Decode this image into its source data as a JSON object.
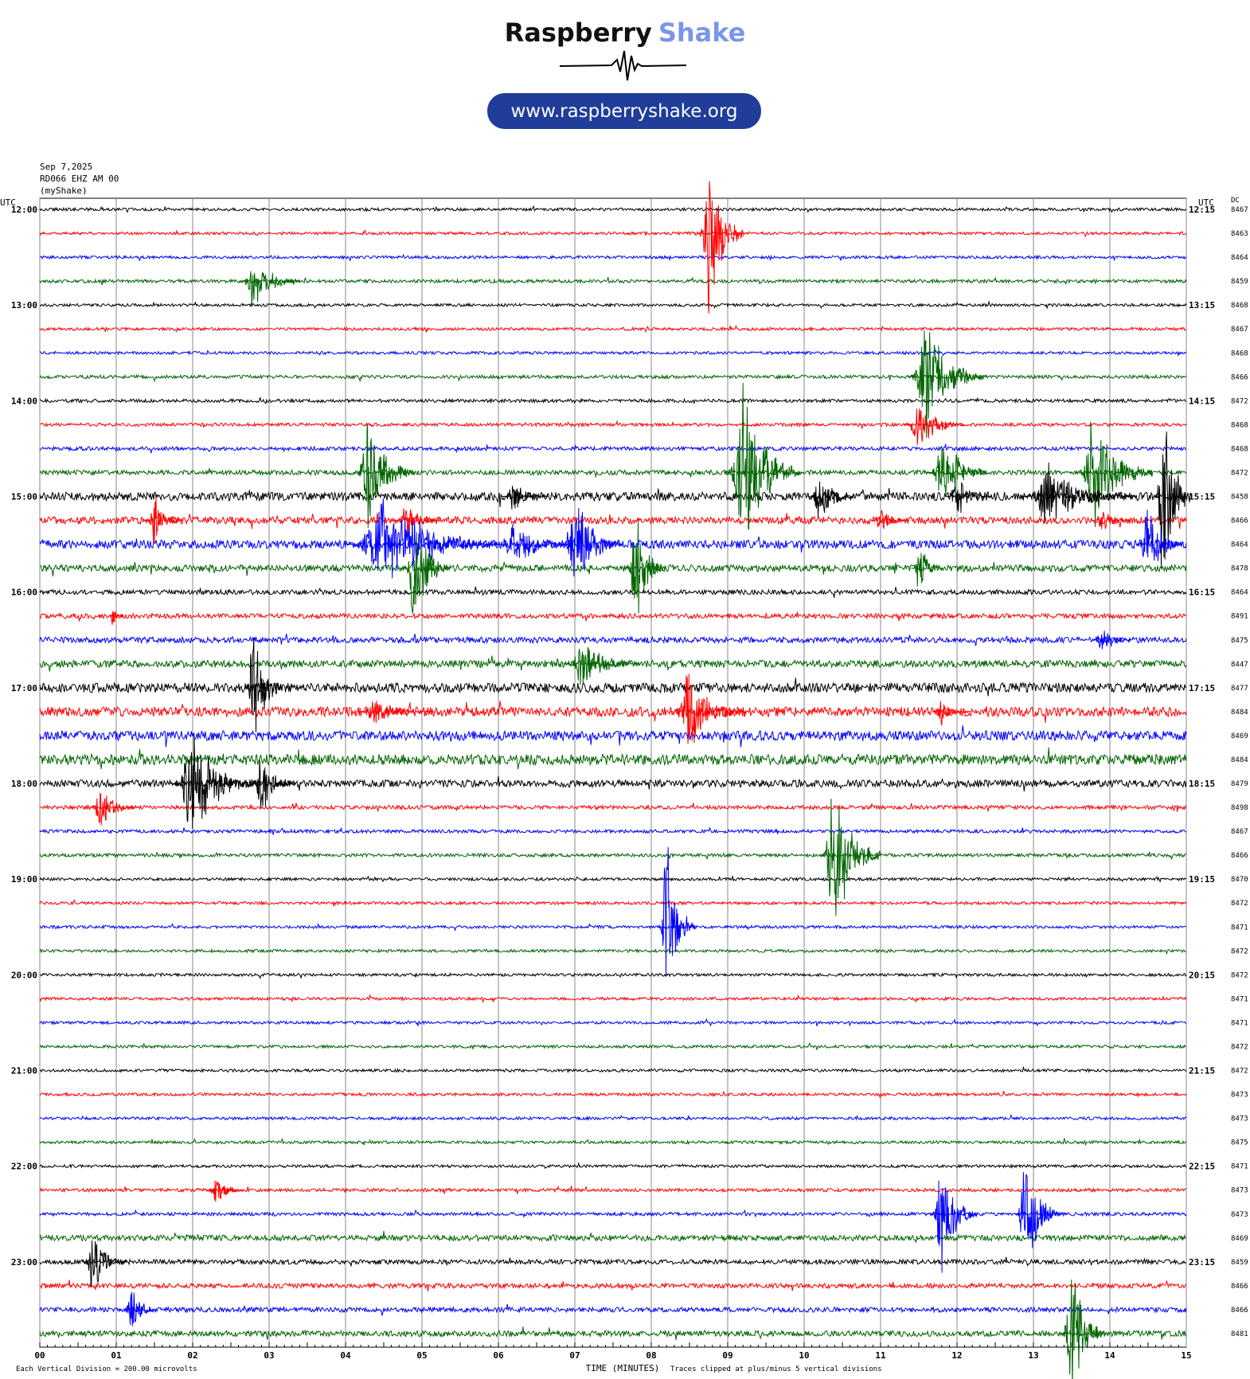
{
  "header": {
    "brand": "Raspberry",
    "brand_accent": "Shake",
    "url": "www.raspberryshake.org"
  },
  "chart_data": {
    "type": "helicorder",
    "date": "Sep 7,2025",
    "station": "RD066 EHZ AM 00",
    "source": "(myShake)",
    "left_axis_label": "UTC",
    "right_axis_label": "UTC",
    "dc_label": "DC",
    "left_labels": [
      "12:00",
      null,
      null,
      null,
      "13:00",
      null,
      null,
      null,
      "14:00",
      null,
      null,
      null,
      "15:00",
      null,
      null,
      null,
      "16:00",
      null,
      null,
      null,
      "17:00",
      null,
      null,
      null,
      "18:00",
      null,
      null,
      null,
      "19:00",
      null,
      null,
      null,
      "20:00",
      null,
      null,
      null,
      "21:00",
      null,
      null,
      null,
      "22:00",
      null,
      null,
      null,
      "23:00",
      null,
      null,
      null
    ],
    "right_labels": [
      "12:15",
      null,
      null,
      null,
      "13:15",
      null,
      null,
      null,
      "14:15",
      null,
      null,
      null,
      "15:15",
      null,
      null,
      null,
      "16:15",
      null,
      null,
      null,
      "17:15",
      null,
      null,
      null,
      "18:15",
      null,
      null,
      null,
      "19:15",
      null,
      null,
      null,
      "20:15",
      null,
      null,
      null,
      "21:15",
      null,
      null,
      null,
      "22:15",
      null,
      null,
      null,
      "23:15",
      null,
      null,
      null
    ],
    "dc_values": [
      8467,
      8463,
      8464,
      8459,
      8468,
      8467,
      8468,
      8466,
      8472,
      8468,
      8468,
      8472,
      8458,
      8466,
      8464,
      8478,
      8464,
      8491,
      8475,
      8447,
      8477,
      8484,
      8469,
      8484,
      8479,
      8498,
      8467,
      8466,
      8470,
      8472,
      8471,
      8472,
      8472,
      8471,
      8471,
      8472,
      8472,
      8473,
      8473,
      8475,
      8471,
      8473,
      8473,
      8469,
      8459,
      8466,
      8466,
      8481
    ],
    "colors": [
      "#000000",
      "#ff0000",
      "#0000ff",
      "#006400"
    ],
    "noise": [
      0.06,
      0.06,
      0.06,
      0.07,
      0.06,
      0.06,
      0.06,
      0.07,
      0.07,
      0.07,
      0.08,
      0.1,
      0.18,
      0.15,
      0.18,
      0.14,
      0.1,
      0.1,
      0.12,
      0.15,
      0.2,
      0.2,
      0.2,
      0.22,
      0.15,
      0.08,
      0.07,
      0.07,
      0.06,
      0.06,
      0.06,
      0.06,
      0.06,
      0.06,
      0.06,
      0.06,
      0.06,
      0.06,
      0.06,
      0.06,
      0.06,
      0.07,
      0.07,
      0.12,
      0.1,
      0.1,
      0.1,
      0.12
    ],
    "events": [
      {
        "row": 1,
        "minute": 8.75,
        "amplitude": 4.5,
        "duration": 0.6
      },
      {
        "row": 3,
        "minute": 2.8,
        "amplitude": 1.3,
        "duration": 0.8
      },
      {
        "row": 7,
        "minute": 11.6,
        "amplitude": 3,
        "duration": 1
      },
      {
        "row": 9,
        "minute": 11.5,
        "amplitude": 1.2,
        "duration": 0.8
      },
      {
        "row": 11,
        "minute": 4.3,
        "amplitude": 3,
        "duration": 0.8
      },
      {
        "row": 11,
        "minute": 9.2,
        "amplitude": 4,
        "duration": 1
      },
      {
        "row": 11,
        "minute": 11.8,
        "amplitude": 2,
        "duration": 0.8
      },
      {
        "row": 11,
        "minute": 13.8,
        "amplitude": 3,
        "duration": 1
      },
      {
        "row": 12,
        "minute": 6.2,
        "amplitude": 0.8,
        "duration": 0.6
      },
      {
        "row": 12,
        "minute": 10.2,
        "amplitude": 1.5,
        "duration": 0.6
      },
      {
        "row": 12,
        "minute": 12,
        "amplitude": 1,
        "duration": 0.6
      },
      {
        "row": 12,
        "minute": 13.2,
        "amplitude": 1.5,
        "duration": 1.5
      },
      {
        "row": 12,
        "minute": 14.7,
        "amplitude": 5,
        "duration": 0.5
      },
      {
        "row": 13,
        "minute": 1.5,
        "amplitude": 1.3,
        "duration": 0.5
      },
      {
        "row": 13,
        "minute": 4.8,
        "amplitude": 1,
        "duration": 0.6
      },
      {
        "row": 13,
        "minute": 11,
        "amplitude": 0.7,
        "duration": 0.5
      },
      {
        "row": 13,
        "minute": 13.9,
        "amplitude": 0.6,
        "duration": 0.5
      },
      {
        "row": 14,
        "minute": 4.5,
        "amplitude": 2.5,
        "duration": 2
      },
      {
        "row": 14,
        "minute": 6.2,
        "amplitude": 1.2,
        "duration": 1
      },
      {
        "row": 14,
        "minute": 7,
        "amplitude": 2.5,
        "duration": 0.8
      },
      {
        "row": 14,
        "minute": 14.5,
        "amplitude": 2,
        "duration": 0.6
      },
      {
        "row": 15,
        "minute": 4.9,
        "amplitude": 3,
        "duration": 0.6
      },
      {
        "row": 15,
        "minute": 7.8,
        "amplitude": 3,
        "duration": 0.5
      },
      {
        "row": 15,
        "minute": 11.5,
        "amplitude": 1.5,
        "duration": 0.4
      },
      {
        "row": 17,
        "minute": 0.95,
        "amplitude": 0.6,
        "duration": 0.2
      },
      {
        "row": 18,
        "minute": 13.9,
        "amplitude": 0.8,
        "duration": 0.5
      },
      {
        "row": 19,
        "minute": 7.1,
        "amplitude": 1.2,
        "duration": 1
      },
      {
        "row": 20,
        "minute": 2.8,
        "amplitude": 3,
        "duration": 0.5
      },
      {
        "row": 21,
        "minute": 4.4,
        "amplitude": 0.7,
        "duration": 1
      },
      {
        "row": 21,
        "minute": 8.5,
        "amplitude": 2,
        "duration": 1
      },
      {
        "row": 21,
        "minute": 11.8,
        "amplitude": 0.6,
        "duration": 0.5
      },
      {
        "row": 24,
        "minute": 2,
        "amplitude": 2.5,
        "duration": 1.2
      },
      {
        "row": 24,
        "minute": 2.9,
        "amplitude": 1.5,
        "duration": 0.6
      },
      {
        "row": 25,
        "minute": 0.8,
        "amplitude": 1,
        "duration": 0.6
      },
      {
        "row": 27,
        "minute": 10.4,
        "amplitude": 4,
        "duration": 0.8
      },
      {
        "row": 30,
        "minute": 8.2,
        "amplitude": 4,
        "duration": 0.5
      },
      {
        "row": 41,
        "minute": 2.3,
        "amplitude": 0.8,
        "duration": 0.5
      },
      {
        "row": 42,
        "minute": 11.8,
        "amplitude": 3,
        "duration": 0.6
      },
      {
        "row": 42,
        "minute": 12.9,
        "amplitude": 3,
        "duration": 0.6
      },
      {
        "row": 44,
        "minute": 0.7,
        "amplitude": 1.5,
        "duration": 0.6
      },
      {
        "row": 46,
        "minute": 1.2,
        "amplitude": 1.5,
        "duration": 0.4
      },
      {
        "row": 47,
        "minute": 13.5,
        "amplitude": 3.5,
        "duration": 0.6
      }
    ],
    "xlim": [
      0,
      15
    ],
    "xticks": [
      {
        "value": 0,
        "label": "00"
      },
      {
        "value": 1,
        "label": "01"
      },
      {
        "value": 2,
        "label": "02"
      },
      {
        "value": 3,
        "label": "03"
      },
      {
        "value": 4,
        "label": "04"
      },
      {
        "value": 5,
        "label": "05"
      },
      {
        "value": 6,
        "label": "06"
      },
      {
        "value": 7,
        "label": "07"
      },
      {
        "value": 8,
        "label": "08"
      },
      {
        "value": 9,
        "label": "09"
      },
      10,
      11,
      12,
      13,
      14,
      15
    ],
    "xlabel": "TIME (MINUTES)",
    "scale_note": "Each Vertical Division =  200.00 microvolts",
    "clip_note": "Traces clipped at plus/minus 5 vertical divisions",
    "grid": true
  }
}
